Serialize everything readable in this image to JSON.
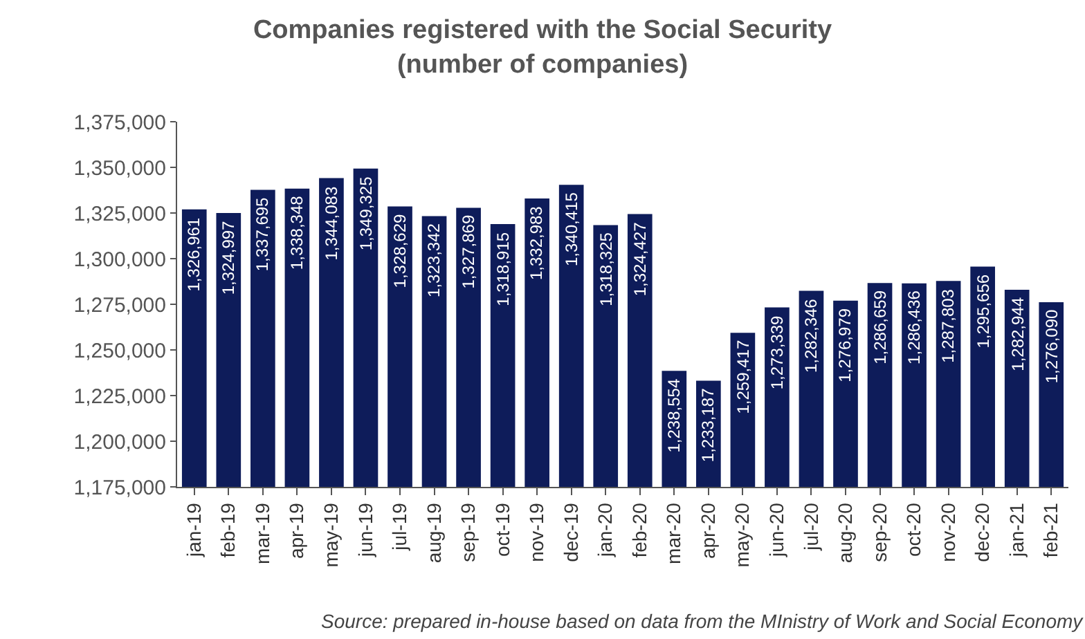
{
  "chart_data": {
    "type": "bar",
    "title": "Companies registered with the Social Security",
    "subtitle": "(number of companies)",
    "categories": [
      "jan-19",
      "feb-19",
      "mar-19",
      "apr-19",
      "may-19",
      "jun-19",
      "jul-19",
      "aug-19",
      "sep-19",
      "oct-19",
      "nov-19",
      "dec-19",
      "jan-20",
      "feb-20",
      "mar-20",
      "apr-20",
      "may-20",
      "jun-20",
      "jul-20",
      "aug-20",
      "sep-20",
      "oct-20",
      "nov-20",
      "dec-20",
      "jan-21",
      "feb-21"
    ],
    "values": [
      1326961,
      1324997,
      1337695,
      1338348,
      1344083,
      1349325,
      1328629,
      1323342,
      1327869,
      1318915,
      1332983,
      1340415,
      1318325,
      1324427,
      1238554,
      1233187,
      1259417,
      1273339,
      1282346,
      1276979,
      1286659,
      1286436,
      1287803,
      1295656,
      1282944,
      1276090
    ],
    "value_labels": [
      "1,326,961",
      "1,324,997",
      "1,337,695",
      "1,338,348",
      "1,344,083",
      "1,349,325",
      "1,328,629",
      "1,323,342",
      "1,327,869",
      "1,318,915",
      "1,332,983",
      "1,340,415",
      "1,318,325",
      "1,324,427",
      "1,238,554",
      "1,233,187",
      "1,259,417",
      "1,273,339",
      "1,282,346",
      "1,276,979",
      "1,286,659",
      "1,286,436",
      "1,287,803",
      "1,295,656",
      "1,282,944",
      "1,276,090"
    ],
    "color": "#0e1c5a",
    "grid": false,
    "ylim": [
      1175000,
      1375000
    ],
    "yticks": [
      {
        "value": 1175000,
        "label": "1,175,000"
      },
      {
        "value": 1200000,
        "label": "1,200,000"
      },
      {
        "value": 1225000,
        "label": "1,225,000"
      },
      {
        "value": 1250000,
        "label": "1,250,000"
      },
      {
        "value": 1275000,
        "label": "1,275,000"
      },
      {
        "value": 1300000,
        "label": "1,300,000"
      },
      {
        "value": 1325000,
        "label": "1,325,000"
      },
      {
        "value": 1350000,
        "label": "1,350,000"
      },
      {
        "value": 1375000,
        "label": "1,375,000"
      }
    ],
    "annotations": [
      "Source: prepared in-house based on data from the MInistry of Work and Social Economy"
    ]
  }
}
